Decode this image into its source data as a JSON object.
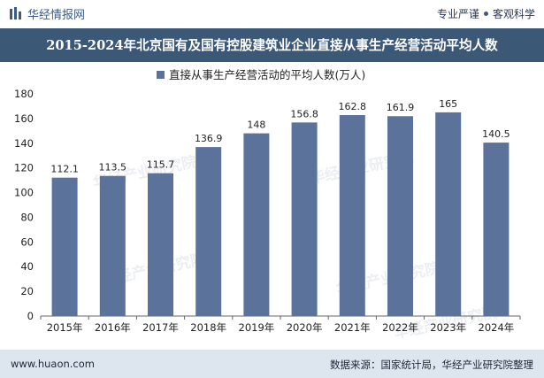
{
  "header": {
    "brand": "华经情报网",
    "tagline_left": "专业严谨",
    "tagline_right": "客观科学",
    "logo_icon": "bar-chart-logo-icon"
  },
  "title": "2015-2024年北京国有及国有控股建筑业企业直接从事生产经营活动平均人数",
  "footer": {
    "site": "www.huaon.com",
    "source": "数据来源：国家统计局，华经产业研究院整理"
  },
  "watermark": "华经产业研究院",
  "chart_data": {
    "type": "bar",
    "categories": [
      "2015年",
      "2016年",
      "2017年",
      "2018年",
      "2019年",
      "2020年",
      "2021年",
      "2022年",
      "2023年",
      "2024年"
    ],
    "series": [
      {
        "name": "直接从事生产经营活动的平均人数(万人)",
        "values": [
          112.1,
          113.5,
          115.7,
          136.9,
          148,
          156.8,
          162.8,
          161.9,
          165,
          140.5
        ],
        "labels": [
          "112.1",
          "113.5",
          "115.7",
          "136.9",
          "148",
          "156.8",
          "162.8",
          "161.9",
          "165",
          "140.5"
        ]
      }
    ],
    "ylim": [
      0,
      180
    ],
    "yticks": [
      0,
      20,
      40,
      60,
      80,
      100,
      120,
      140,
      160,
      180
    ],
    "grid": false,
    "legend_position": "top-center",
    "bar_color": "#5b729b"
  }
}
